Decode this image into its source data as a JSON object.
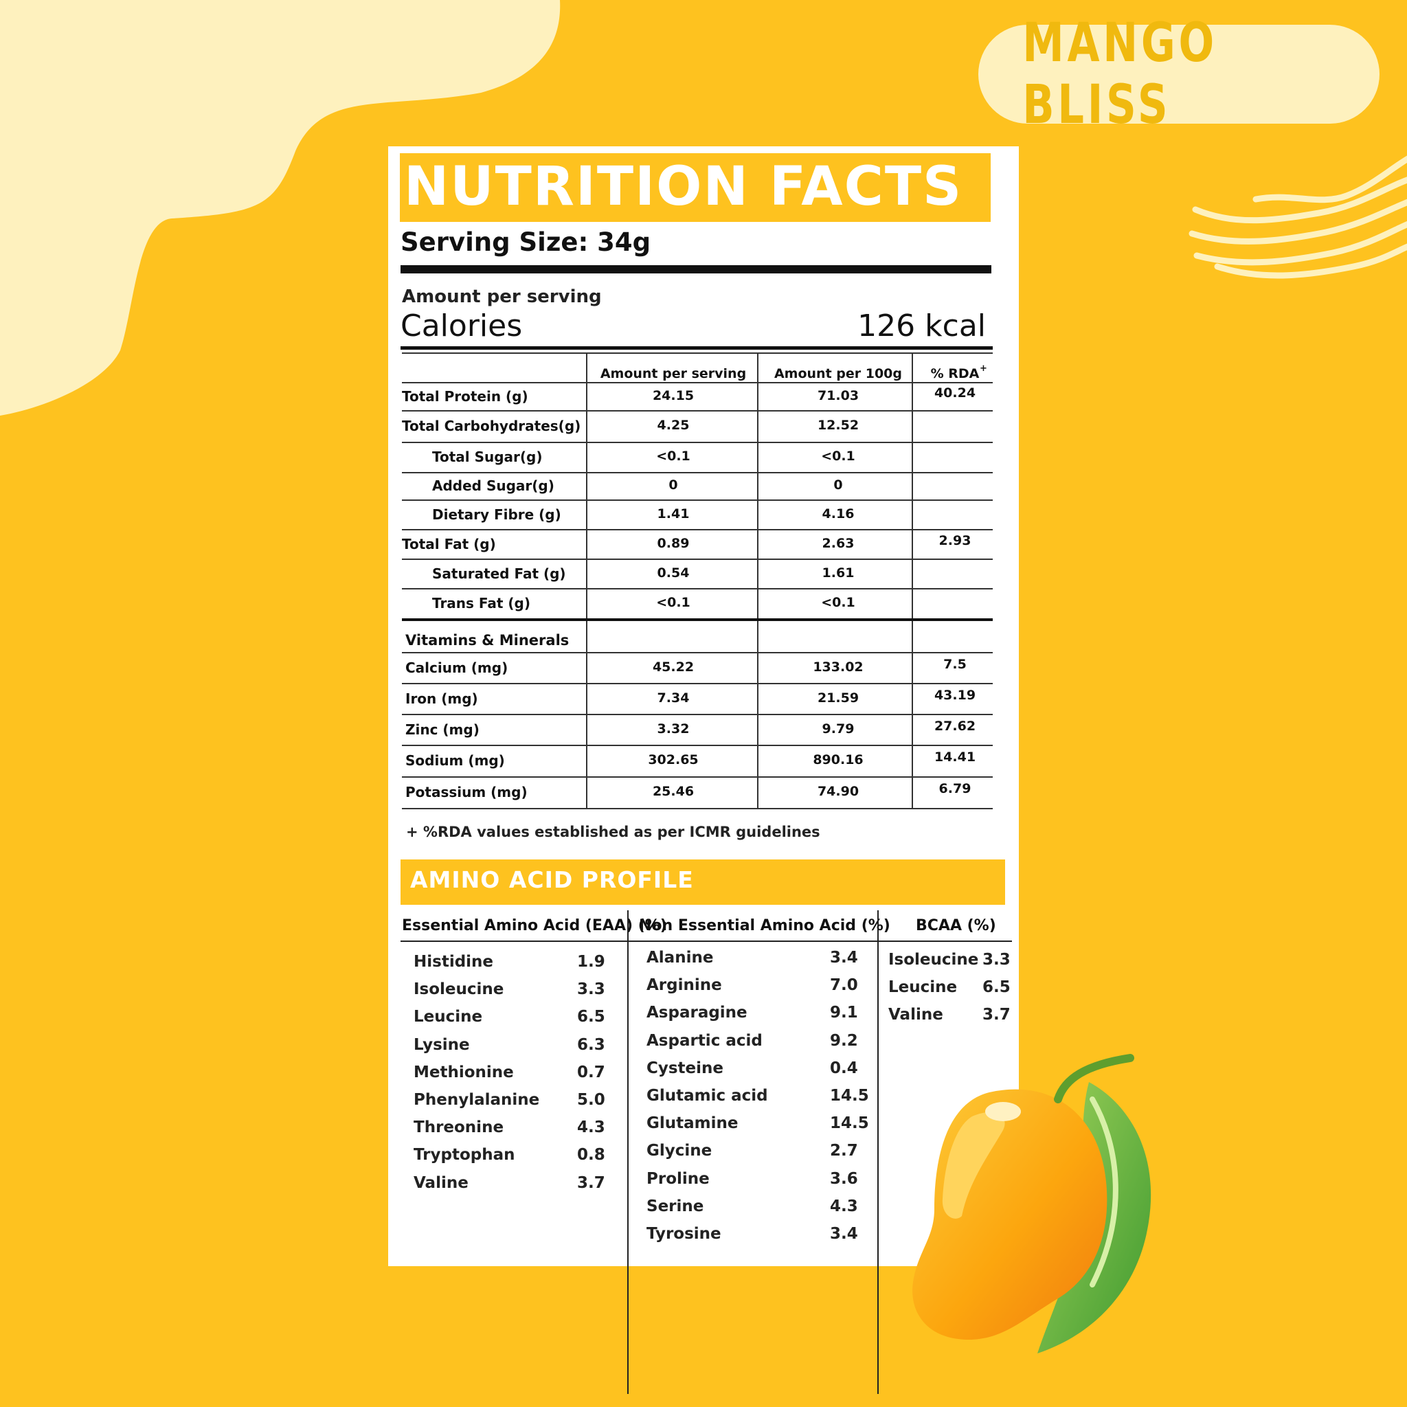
{
  "brand": {
    "badge": "MANGO BLISS"
  },
  "label": {
    "title": "NUTRITION FACTS",
    "serving_size": "Serving Size: 34g",
    "amount_per_serving": "Amount per serving",
    "calories_label": "Calories",
    "calories_value": "126 kcal"
  },
  "nutrition_table": {
    "headers": [
      "",
      "Amount per serving",
      "Amount per 100g",
      "% RDA"
    ],
    "rda_marker": "+",
    "rows": [
      {
        "name": "Total Protein (g)",
        "per_serving": "24.15",
        "per_100g": "71.03",
        "rda": "40.24",
        "indent": false
      },
      {
        "name": "Total Carbohydrates(g)",
        "per_serving": "4.25",
        "per_100g": "12.52",
        "rda": "",
        "indent": false
      },
      {
        "name": "Total Sugar(g)",
        "per_serving": "<0.1",
        "per_100g": "<0.1",
        "rda": "",
        "indent": true
      },
      {
        "name": "Added Sugar(g)",
        "per_serving": "0",
        "per_100g": "0",
        "rda": "",
        "indent": true
      },
      {
        "name": "Dietary Fibre (g)",
        "per_serving": "1.41",
        "per_100g": "4.16",
        "rda": "",
        "indent": true
      },
      {
        "name": "Total Fat (g)",
        "per_serving": "0.89",
        "per_100g": "2.63",
        "rda": "2.93",
        "indent": false
      },
      {
        "name": "Saturated Fat (g)",
        "per_serving": "0.54",
        "per_100g": "1.61",
        "rda": "",
        "indent": true
      },
      {
        "name": "Trans Fat (g)",
        "per_serving": "<0.1",
        "per_100g": "<0.1",
        "rda": "",
        "indent": true
      }
    ],
    "vitamins_heading": "Vitamins & Minerals",
    "minerals": [
      {
        "name": "Calcium (mg)",
        "per_serving": "45.22",
        "per_100g": "133.02",
        "rda": "7.5"
      },
      {
        "name": "Iron (mg)",
        "per_serving": "7.34",
        "per_100g": "21.59",
        "rda": "43.19"
      },
      {
        "name": "Zinc (mg)",
        "per_serving": "3.32",
        "per_100g": "9.79",
        "rda": "27.62"
      },
      {
        "name": "Sodium (mg)",
        "per_serving": "302.65",
        "per_100g": "890.16",
        "rda": "14.41"
      },
      {
        "name": "Potassium (mg)",
        "per_serving": "25.46",
        "per_100g": "74.90",
        "rda": "6.79"
      }
    ],
    "footnote": "+ %RDA values established as per ICMR guidelines"
  },
  "amino": {
    "title": "AMINO ACID PROFILE",
    "eaa_header": "Essential Amino Acid (EAA) (%)",
    "neaa_header": "Non Essential Amino Acid  (%)",
    "bcaa_header": "BCAA  (%)",
    "eaa": [
      {
        "name": "Histidine",
        "value": "1.9"
      },
      {
        "name": "Isoleucine",
        "value": "3.3"
      },
      {
        "name": "Leucine",
        "value": "6.5"
      },
      {
        "name": "Lysine",
        "value": "6.3"
      },
      {
        "name": "Methionine",
        "value": "0.7"
      },
      {
        "name": "Phenylalanine",
        "value": "5.0"
      },
      {
        "name": "Threonine",
        "value": "4.3"
      },
      {
        "name": "Tryptophan",
        "value": "0.8"
      },
      {
        "name": "Valine",
        "value": "3.7"
      }
    ],
    "neaa": [
      {
        "name": "Alanine",
        "value": "3.4"
      },
      {
        "name": "Arginine",
        "value": "7.0"
      },
      {
        "name": "Asparagine",
        "value": "9.1"
      },
      {
        "name": "Aspartic acid",
        "value": "9.2"
      },
      {
        "name": "Cysteine",
        "value": "0.4"
      },
      {
        "name": "Glutamic acid",
        "value": "14.5"
      },
      {
        "name": "Glutamine",
        "value": "14.5"
      },
      {
        "name": "Glycine",
        "value": "2.7"
      },
      {
        "name": "Proline",
        "value": "3.6"
      },
      {
        "name": "Serine",
        "value": "4.3"
      },
      {
        "name": "Tyrosine",
        "value": "3.4"
      }
    ],
    "bcaa": [
      {
        "name": "Isoleucine",
        "value": "3.3"
      },
      {
        "name": "Leucine",
        "value": "6.5"
      },
      {
        "name": "Valine",
        "value": "3.7"
      }
    ]
  },
  "colors": {
    "background": "#FEC21F",
    "cream": "#FEF1BE",
    "accent_text": "#F0B90F",
    "card": "#FFFFFF"
  },
  "icons": {
    "illustration": "mango-icon",
    "decoration": "wave-lines-icon"
  }
}
